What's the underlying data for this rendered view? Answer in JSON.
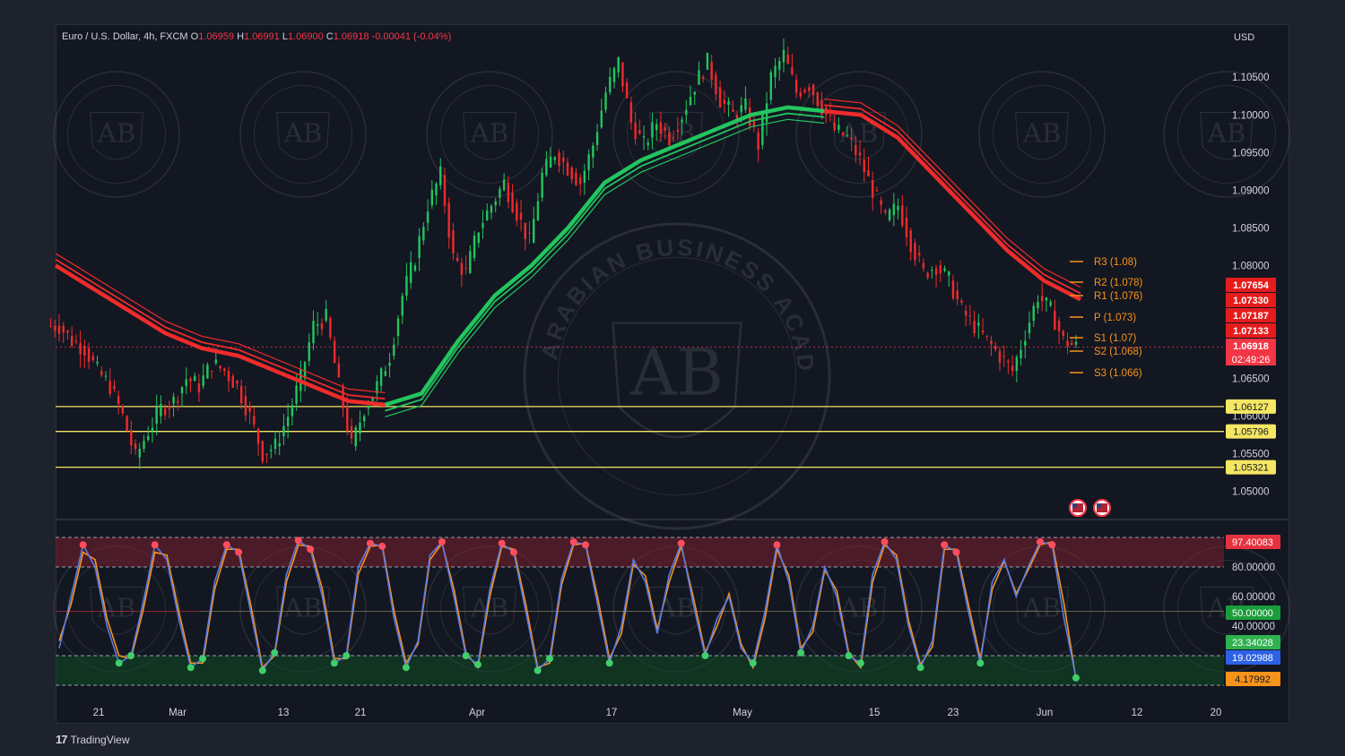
{
  "header": {
    "symbol": "Euro / U.S. Dollar, 4h, FXCM",
    "o_label": "O",
    "o_value": "1.06959",
    "h_label": "H",
    "h_value": "1.06991",
    "l_label": "L",
    "l_value": "1.06900",
    "c_label": "C",
    "c_value": "1.06918",
    "change": "-0.00041 (-0.04%)"
  },
  "currency": "USD",
  "watermark": {
    "initials": "AB",
    "ring_text": "ARABIAN BUSINESS ACADEMY"
  },
  "brand": {
    "logo": "17",
    "name": "TradingView"
  },
  "colors": {
    "up": "#22c55e",
    "down": "#ef2b2b",
    "bg": "#131722",
    "level": "#f5e663",
    "pivot": "#f7931a",
    "k_line": "#5b7be0",
    "d_line": "#f7931a"
  },
  "chart_data": [
    {
      "type": "candlestick",
      "title": "Euro / U.S. Dollar, 4h, FXCM",
      "ylabel": "USD",
      "ylim": [
        1.0465,
        1.1105
      ],
      "x_ticks": [
        "21",
        "Mar",
        "13",
        "21",
        "Apr",
        "17",
        "May",
        "15",
        "23",
        "Jun",
        "12",
        "20"
      ],
      "y_ticks": [
        "1.10500",
        "1.10000",
        "1.09500",
        "1.09000",
        "1.08500",
        "1.08000",
        "1.06500",
        "1.06000",
        "1.05500",
        "1.05000"
      ],
      "close_path": [
        1.072,
        1.07,
        1.069,
        1.066,
        1.064,
        1.06,
        1.0545,
        1.058,
        1.061,
        1.062,
        1.065,
        1.064,
        1.067,
        1.066,
        1.064,
        1.06,
        1.055,
        1.056,
        1.06,
        1.065,
        1.072,
        1.073,
        1.064,
        1.056,
        1.061,
        1.064,
        1.068,
        1.076,
        1.081,
        1.088,
        1.092,
        1.081,
        1.079,
        1.085,
        1.088,
        1.091,
        1.087,
        1.083,
        1.092,
        1.095,
        1.093,
        1.091,
        1.096,
        1.103,
        1.107,
        1.099,
        1.096,
        1.099,
        1.097,
        1.1,
        1.104,
        1.107,
        1.102,
        1.1,
        1.101,
        1.096,
        1.105,
        1.108,
        1.103,
        1.104,
        1.101,
        1.098,
        1.097,
        1.094,
        1.09,
        1.086,
        1.088,
        1.083,
        1.079,
        1.08,
        1.078,
        1.074,
        1.072,
        1.07,
        1.068,
        1.066,
        1.071,
        1.076,
        1.074,
        1.07,
        1.0692
      ],
      "moving_averages": [
        {
          "color": "green/red",
          "values": [
            1.08,
            1.077,
            1.074,
            1.071,
            1.069,
            1.068,
            1.066,
            1.064,
            1.062,
            1.0615,
            1.063,
            1.07,
            1.076,
            1.08,
            1.085,
            1.091,
            1.094,
            1.096,
            1.098,
            1.1,
            1.101,
            1.1005,
            1.1,
            1.097,
            1.092,
            1.087,
            1.082,
            1.078,
            1.0755
          ]
        }
      ],
      "price_labels": [
        "1.07654",
        "1.07330",
        "1.07187",
        "1.07133",
        "1.06918"
      ],
      "countdown": "02:49:26",
      "horizontal_levels": [
        {
          "label": "1.06127",
          "value": 1.06127
        },
        {
          "label": "1.05796",
          "value": 1.05796
        },
        {
          "label": "1.05321",
          "value": 1.05321
        }
      ],
      "pivots": [
        {
          "label": "R3 (1.08)",
          "value": 1.08
        },
        {
          "label": "R2 (1.078)",
          "value": 1.078
        },
        {
          "label": "R1 (1.076)",
          "value": 1.076
        },
        {
          "label": "P (1.073)",
          "value": 1.073
        },
        {
          "label": "S1 (1.07)",
          "value": 1.07
        },
        {
          "label": "S2 (1.068)",
          "value": 1.068
        },
        {
          "label": "S3 (1.066)",
          "value": 1.066
        }
      ]
    },
    {
      "type": "line",
      "title": "",
      "ylim": [
        0,
        100
      ],
      "y_ticks": [
        "80.00000",
        "60.00000",
        "40.00000"
      ],
      "overbought": 80,
      "middle": 50,
      "oversold": 20,
      "value_labels": [
        "97.40083",
        "50.00000",
        "23.34028",
        "19.02988",
        "4.17992"
      ],
      "series": [
        {
          "values": [
            25,
            60,
            95,
            80,
            40,
            15,
            20,
            55,
            95,
            85,
            45,
            12,
            18,
            70,
            95,
            90,
            50,
            10,
            22,
            75,
            98,
            92,
            60,
            15,
            20,
            80,
            96,
            94,
            45,
            12,
            30,
            88,
            97,
            60,
            20,
            14,
            65,
            96,
            90,
            50,
            10,
            18,
            72,
            97,
            95,
            55,
            15,
            40,
            85,
            70,
            35,
            75,
            96,
            55,
            20,
            45,
            60,
            25,
            15,
            50,
            95,
            70,
            22,
            40,
            80,
            60,
            20,
            15,
            75,
            97,
            85,
            40,
            12,
            30,
            95,
            90,
            50,
            15,
            70,
            85,
            60,
            80,
            97,
            95,
            45,
            5
          ]
        },
        {
          "values": [
            30,
            55,
            90,
            85,
            45,
            20,
            18,
            50,
            90,
            88,
            50,
            15,
            15,
            65,
            92,
            92,
            55,
            12,
            20,
            70,
            95,
            94,
            65,
            18,
            18,
            75,
            94,
            95,
            50,
            15,
            28,
            85,
            96,
            65,
            22,
            12,
            60,
            94,
            92,
            55,
            12,
            15,
            68,
            95,
            96,
            60,
            18,
            35,
            82,
            74,
            38,
            70,
            94,
            60,
            22,
            40,
            62,
            28,
            12,
            45,
            92,
            74,
            25,
            36,
            78,
            64,
            22,
            12,
            70,
            95,
            88,
            44,
            14,
            26,
            92,
            92,
            55,
            18,
            65,
            84,
            62,
            78,
            95,
            97,
            55,
            4
          ]
        }
      ]
    }
  ]
}
